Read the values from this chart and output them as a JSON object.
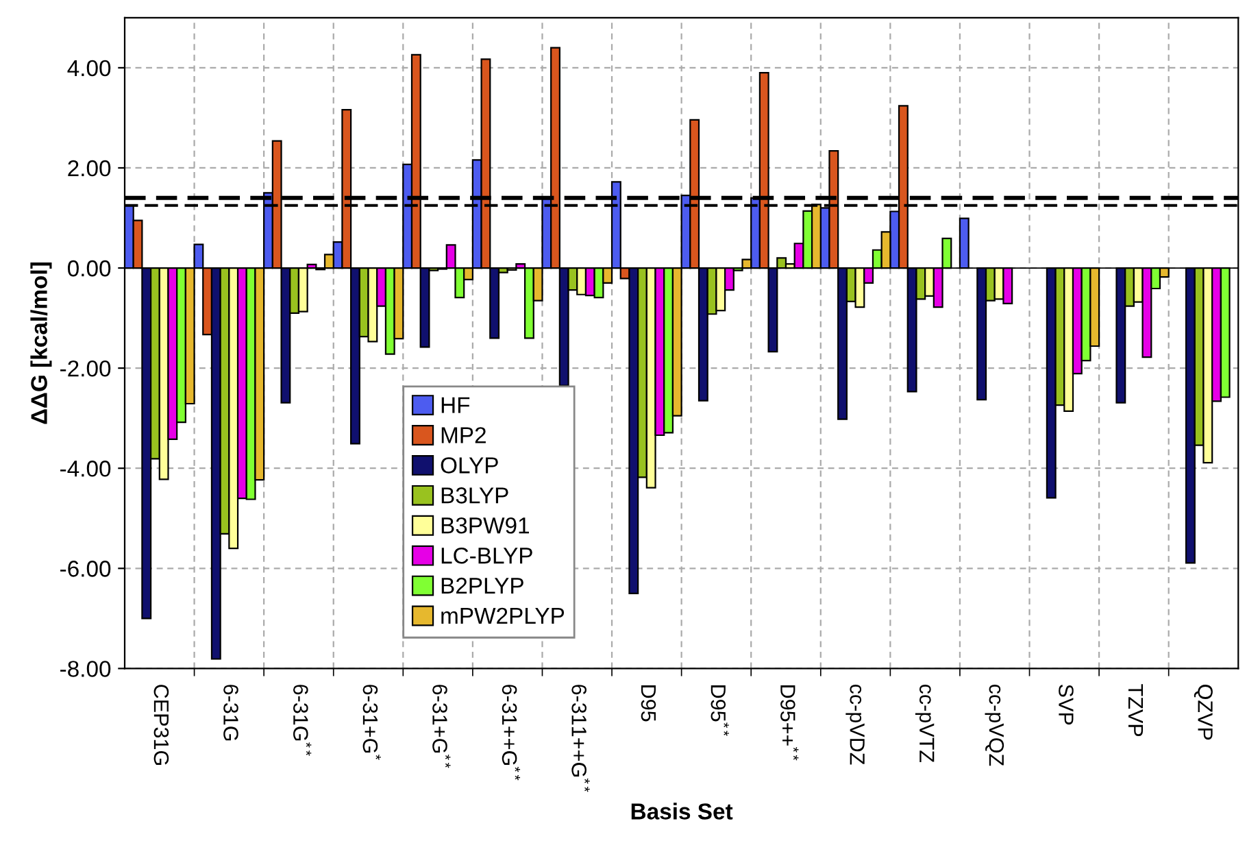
{
  "chart_data": {
    "type": "bar",
    "xlabel": "Basis Set",
    "ylabel": "ΔΔG [kcal/mol]",
    "categories": [
      "CEP31G",
      "6-31G",
      "6-31G$^{**}$",
      "6-31+G$^{*}$",
      "6-31+G$^{**}$",
      "6-31++G$^{**}$",
      "6-311++G$^{**}$",
      "D95",
      "D95$^{**}$",
      "D95++$^{**}$",
      "cc-pVDZ",
      "cc-pVTZ",
      "cc-pVQZ",
      "SVP",
      "TZVP",
      "QZVP"
    ],
    "series": [
      {
        "name": "HF",
        "color": "#4d5cf0",
        "values": [
          1.25,
          0.47,
          1.5,
          0.52,
          2.07,
          2.16,
          1.38,
          1.72,
          1.45,
          1.4,
          1.2,
          1.13,
          0.99,
          null,
          null,
          null
        ]
      },
      {
        "name": "MP2",
        "color": "#d9561e",
        "values": [
          0.95,
          -1.33,
          2.54,
          3.16,
          4.26,
          4.17,
          4.4,
          -0.21,
          2.96,
          3.9,
          2.34,
          3.24,
          null,
          null,
          null,
          null
        ]
      },
      {
        "name": "OLYP",
        "color": "#10106e",
        "values": [
          -7.0,
          -7.81,
          -2.69,
          -3.51,
          -1.58,
          -1.4,
          -2.35,
          -6.5,
          -2.65,
          -1.67,
          -3.02,
          -2.47,
          -2.63,
          -4.59,
          -2.69,
          -5.89
        ]
      },
      {
        "name": "B3LYP",
        "color": "#99c21f",
        "values": [
          -3.81,
          -5.31,
          -0.9,
          -1.37,
          -0.05,
          -0.09,
          -0.44,
          -4.18,
          -0.92,
          0.2,
          -0.67,
          -0.62,
          -0.65,
          -2.74,
          -0.76,
          -3.54
        ]
      },
      {
        "name": "B3PW91",
        "color": "#ffff99",
        "values": [
          -4.22,
          -5.6,
          -0.87,
          -1.47,
          -0.02,
          -0.04,
          -0.53,
          -4.39,
          -0.85,
          0.08,
          -0.78,
          -0.56,
          -0.62,
          -2.86,
          -0.68,
          -3.89
        ]
      },
      {
        "name": "LC-BLYP",
        "color": "#e600e6",
        "values": [
          -3.42,
          -4.6,
          0.07,
          -0.76,
          0.46,
          0.08,
          -0.55,
          -3.34,
          -0.44,
          0.49,
          -0.3,
          -0.78,
          -0.71,
          -2.11,
          -1.78,
          -2.66
        ]
      },
      {
        "name": "B2PLYP",
        "color": "#80ff33",
        "values": [
          -3.08,
          -4.62,
          -0.03,
          -1.72,
          -0.59,
          -1.4,
          -0.59,
          -3.29,
          -0.05,
          1.14,
          0.36,
          0.59,
          null,
          -1.85,
          -0.41,
          -2.58
        ]
      },
      {
        "name": "mPW2PLYP",
        "color": "#e6b82e",
        "values": [
          -2.71,
          -4.23,
          0.27,
          -1.41,
          -0.23,
          -0.65,
          -0.3,
          -2.95,
          0.17,
          1.27,
          0.72,
          null,
          null,
          -1.56,
          -0.18,
          null
        ]
      }
    ],
    "ylim": [
      -8,
      5
    ],
    "yticks": [
      {
        "value": -8,
        "label": "-8.00"
      },
      {
        "value": -6,
        "label": "-6.00"
      },
      {
        "value": -4,
        "label": "-4.00"
      },
      {
        "value": -2,
        "label": "-2.00"
      },
      {
        "value": 0,
        "label": "0.00"
      },
      {
        "value": 2,
        "label": "2.00"
      },
      {
        "value": 4,
        "label": "4.00"
      }
    ],
    "ref_lines": [
      {
        "axis": "y",
        "value": 1.4,
        "color": "#000000",
        "line_style": "dashed"
      },
      {
        "axis": "y",
        "value": 1.25,
        "color": "#000000",
        "line_style": "dashed"
      }
    ],
    "grid": true,
    "legend": "bottom left"
  }
}
